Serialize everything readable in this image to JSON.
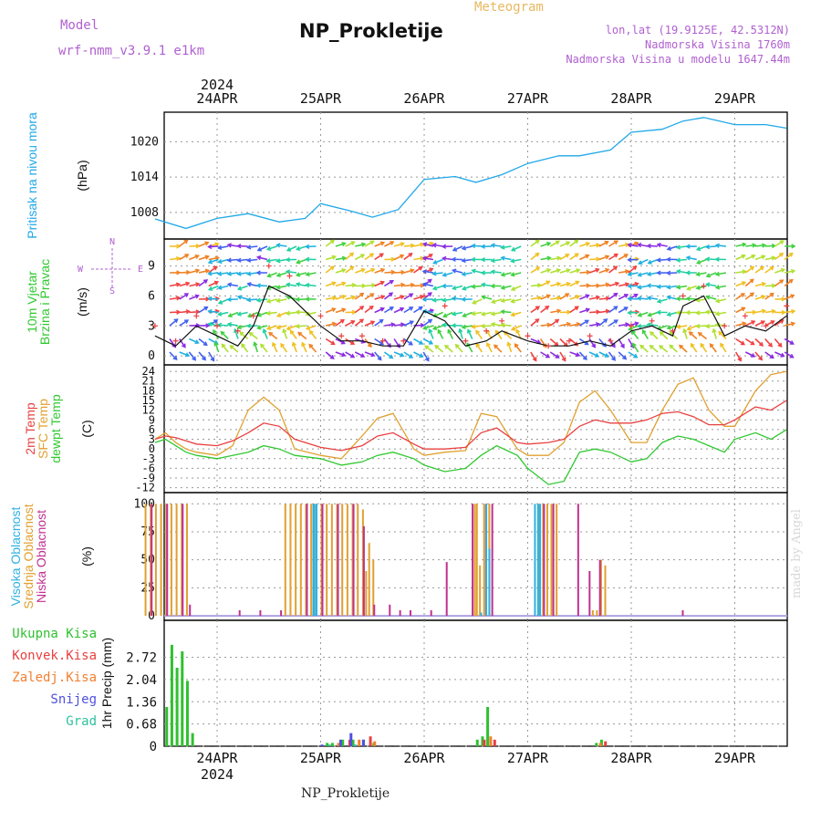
{
  "header": {
    "title": "NP_Prokletije",
    "meteogram": "Meteogram",
    "model_label": "Model",
    "model_name": "wrf-nmm_v3.9.1 e1km",
    "info_lonlat": "lon,lat (19.9125E, 42.5312N)",
    "info_altitude": "Nadmorska Visina 1760m",
    "info_model_altitude": "Nadmorska Visina u modelu 1647.44m"
  },
  "footer": {
    "station": "NP_Prokletije"
  },
  "watermark": "made by Angel",
  "colors": {
    "pressure": "#20a8e8",
    "temp2m": "#e84040",
    "sfc": "#e0a030",
    "dewpt": "#30c830",
    "cloud_high": "#30b0e0",
    "cloud_mid": "#e0a030",
    "cloud_low": "#c03090",
    "precip_total": "#30c030",
    "precip_conv": "#e84040",
    "precip_strat": "#f08030",
    "snow": "#5050e0",
    "graupel": "#30c0a0",
    "wind_speed_line": "#111111"
  },
  "chart_data": [
    {
      "type": "line",
      "panel": "pressure",
      "year": "2024",
      "top_dates": [
        "24APR",
        "25APR",
        "26APR",
        "27APR",
        "28APR",
        "29APR"
      ],
      "ylabel": [
        "Pritisak na nivou mora",
        "(hPa)"
      ],
      "yticks": [
        "1008",
        "1014",
        "1020"
      ],
      "ylim": [
        1003.5,
        1025
      ],
      "x_days": [
        -0.6,
        -0.3,
        0,
        0.3,
        0.6,
        0.85,
        1,
        1.3,
        1.5,
        1.75,
        2,
        2.3,
        2.5,
        2.75,
        3,
        3.3,
        3.5,
        3.8,
        4,
        4.3,
        4.5,
        4.7,
        5,
        5.3,
        5.5
      ],
      "values": [
        1006.9,
        1005.3,
        1007,
        1007.8,
        1006.4,
        1007,
        1009.5,
        1008.2,
        1007.2,
        1008.5,
        1013.6,
        1014.1,
        1013.1,
        1014.4,
        1016.3,
        1017.6,
        1017.6,
        1018.6,
        1021.6,
        1022.1,
        1023.5,
        1024.1,
        1022.9,
        1022.9,
        1022.3
      ]
    },
    {
      "type": "line",
      "panel": "wind",
      "ylabel": [
        "10m Vjetar",
        "Brzina i Pravac",
        "(m/s)"
      ],
      "compass": {
        "n": "N",
        "s": "S",
        "w": "W",
        "e": "E"
      },
      "yticks": [
        "0",
        "3",
        "6",
        "9"
      ],
      "ylim": [
        -0.9,
        11.7
      ],
      "x_days": [
        -0.6,
        -0.4,
        -0.2,
        0,
        0.2,
        0.35,
        0.5,
        0.7,
        1,
        1.2,
        1.4,
        1.6,
        1.8,
        2,
        2.2,
        2.4,
        2.6,
        2.75,
        3,
        3.2,
        3.4,
        3.6,
        3.8,
        4,
        4.2,
        4.4,
        4.5,
        4.7,
        4.9,
        5.1,
        5.3,
        5.5
      ],
      "speed": [
        2,
        1,
        3,
        2,
        1,
        3,
        7,
        6,
        3,
        1.5,
        1.5,
        1,
        1,
        4.5,
        3.5,
        1,
        1.5,
        2.5,
        1.5,
        1,
        1,
        1.5,
        1,
        2.5,
        3,
        2,
        5,
        6,
        2,
        3,
        2.5,
        4
      ],
      "gust": [
        3,
        1.5,
        4,
        3,
        2.5,
        4,
        9,
        8,
        4,
        2,
        2,
        1.5,
        1.5,
        6,
        5,
        1.5,
        2.5,
        3.5,
        2,
        1,
        1.5,
        2,
        1.5,
        3,
        3.5,
        2.5,
        6,
        7,
        3,
        4,
        3,
        5
      ]
    },
    {
      "type": "line",
      "panel": "temperature",
      "ylabel": [
        "2m Temp",
        "SFC Temp",
        "dewpt Temp",
        "(C)"
      ],
      "yticks": [
        "24",
        "21",
        "18",
        "15",
        "12",
        "9",
        "6",
        "3",
        "0",
        "-3",
        "-6",
        "-9",
        "-12"
      ],
      "ylim": [
        -13.5,
        26
      ],
      "x_days": [
        -0.6,
        -0.5,
        -0.4,
        -0.3,
        -0.2,
        0,
        0.15,
        0.3,
        0.45,
        0.6,
        0.75,
        1,
        1.2,
        1.4,
        1.55,
        1.7,
        1.9,
        2,
        2.2,
        2.4,
        2.55,
        2.7,
        2.9,
        3,
        3.2,
        3.35,
        3.5,
        3.65,
        3.8,
        4,
        4.15,
        4.3,
        4.45,
        4.6,
        4.75,
        4.9,
        5,
        5.2,
        5.35,
        5.5
      ],
      "temp2m": [
        3,
        4,
        3.5,
        2.5,
        1.5,
        1,
        2.5,
        5,
        8,
        7,
        3,
        0.5,
        -0.5,
        1,
        4,
        5,
        1.5,
        0,
        0,
        0.5,
        5,
        6.5,
        2,
        1.5,
        2,
        3,
        7,
        9,
        8,
        8,
        9,
        11,
        11.5,
        10,
        7.5,
        7.5,
        9,
        13,
        12,
        15
      ],
      "sfc": [
        3,
        5,
        2,
        0,
        -1,
        -2,
        1,
        12,
        16,
        12,
        0,
        -2,
        -3,
        4,
        9.5,
        11,
        0,
        -2,
        -1,
        -0.5,
        11,
        10,
        0,
        -2,
        -2,
        2,
        14.5,
        18,
        12,
        2,
        2,
        12,
        20,
        22,
        12,
        7,
        7,
        18,
        23,
        24
      ],
      "dewpt": [
        2,
        3,
        1,
        -1,
        -2,
        -3,
        -2,
        -1,
        1,
        0,
        -2,
        -3,
        -5,
        -4,
        -2,
        -1,
        -3,
        -5,
        -7,
        -6,
        -2,
        1,
        -2,
        -6,
        -11,
        -10,
        -1,
        0,
        -1,
        -4,
        -3,
        2,
        4,
        3,
        1,
        -1,
        3,
        5,
        3,
        6
      ]
    },
    {
      "type": "bar",
      "panel": "cloud",
      "ylabel": [
        "Visoka Oblacnost",
        "Srednja Oblacnost",
        "Niska Oblacnost",
        "(%)"
      ],
      "yticks": [
        "0",
        "25",
        "50",
        "75",
        "100"
      ],
      "ylim": [
        -4,
        110
      ],
      "high": [
        [
          0.93,
          100
        ],
        [
          0.94,
          100
        ],
        [
          0.96,
          100
        ],
        [
          2.55,
          3
        ],
        [
          3.07,
          100
        ],
        [
          3.1,
          100
        ],
        [
          3.12,
          100
        ],
        [
          2.63,
          60
        ],
        [
          2.6,
          100
        ]
      ],
      "mid": [
        [
          -0.7,
          100
        ],
        [
          -0.65,
          100
        ],
        [
          -0.6,
          100
        ],
        [
          -0.55,
          100
        ],
        [
          -0.5,
          100
        ],
        [
          -0.45,
          100
        ],
        [
          -0.4,
          100
        ],
        [
          -0.35,
          100
        ],
        [
          -0.3,
          100
        ],
        [
          0.65,
          100
        ],
        [
          0.7,
          100
        ],
        [
          0.75,
          100
        ],
        [
          0.8,
          100
        ],
        [
          0.85,
          100
        ],
        [
          0.9,
          100
        ],
        [
          0.95,
          100
        ],
        [
          1,
          100
        ],
        [
          1.05,
          100
        ],
        [
          1.1,
          100
        ],
        [
          1.15,
          100
        ],
        [
          1.2,
          100
        ],
        [
          1.25,
          100
        ],
        [
          1.3,
          100
        ],
        [
          1.35,
          100
        ],
        [
          1.4,
          95
        ],
        [
          1.43,
          40
        ],
        [
          1.46,
          65
        ],
        [
          1.5,
          50
        ],
        [
          2.48,
          100
        ],
        [
          2.5,
          100
        ],
        [
          2.53,
          45
        ],
        [
          2.57,
          100
        ],
        [
          2.62,
          100
        ],
        [
          3.1,
          100
        ],
        [
          3.14,
          100
        ],
        [
          3.18,
          100
        ],
        [
          3.22,
          100
        ],
        [
          3.27,
          100
        ],
        [
          3.62,
          5
        ],
        [
          3.66,
          5
        ],
        [
          3.7,
          50
        ],
        [
          3.74,
          45
        ]
      ],
      "low": [
        [
          -0.65,
          100
        ],
        [
          -0.5,
          100
        ],
        [
          -0.35,
          100
        ],
        [
          -0.28,
          10
        ],
        [
          0.2,
          5
        ],
        [
          0.4,
          5
        ],
        [
          0.6,
          5
        ],
        [
          0.85,
          100
        ],
        [
          1,
          100
        ],
        [
          1.15,
          100
        ],
        [
          1.3,
          100
        ],
        [
          1.4,
          80
        ],
        [
          1.5,
          10
        ],
        [
          1.65,
          10
        ],
        [
          1.75,
          5
        ],
        [
          1.85,
          5
        ],
        [
          2.05,
          5
        ],
        [
          2.2,
          48
        ],
        [
          2.45,
          100
        ],
        [
          2.58,
          100
        ],
        [
          2.64,
          100
        ],
        [
          3.14,
          100
        ],
        [
          3.23,
          100
        ],
        [
          3.47,
          100
        ],
        [
          3.58,
          40
        ],
        [
          3.68,
          50
        ],
        [
          4.48,
          5
        ]
      ]
    },
    {
      "type": "bar",
      "panel": "precip",
      "legend": [
        "Ukupna Kisa",
        "Konvek.Kisa",
        "Zaledj.Kisa",
        "Snijeg",
        "Grad"
      ],
      "ylabel": [
        "1hr Precip (mm)"
      ],
      "bottom_dates": [
        "24APR",
        "25APR",
        "26APR",
        "27APR",
        "28APR",
        "29APR"
      ],
      "year": "2024",
      "yticks": [
        "0",
        "0.68",
        "1.36",
        "2.04",
        "2.72"
      ],
      "ylim": [
        0,
        3.85
      ],
      "total": [
        [
          -0.5,
          1.2
        ],
        [
          -0.45,
          3.1
        ],
        [
          -0.4,
          2.4
        ],
        [
          -0.35,
          2.9
        ],
        [
          -0.3,
          2.0
        ],
        [
          -0.25,
          0.4
        ],
        [
          1.05,
          0.1
        ],
        [
          1.1,
          0.1
        ],
        [
          1.2,
          0.2
        ],
        [
          1.3,
          0.2
        ],
        [
          1.4,
          0.2
        ],
        [
          1.5,
          0.1
        ],
        [
          2.6,
          1.2
        ],
        [
          2.55,
          0.3
        ],
        [
          2.5,
          0.2
        ],
        [
          3.7,
          0.2
        ],
        [
          3.65,
          0.1
        ]
      ],
      "convective": [
        [
          1.25,
          0.2
        ],
        [
          1.45,
          0.3
        ],
        [
          2.55,
          0.2
        ],
        [
          2.65,
          0.2
        ],
        [
          3.72,
          0.15
        ]
      ],
      "frozen": [
        [
          1.15,
          0.1
        ],
        [
          1.35,
          0.2
        ],
        [
          1.5,
          0.15
        ],
        [
          2.62,
          0.3
        ],
        [
          3.68,
          0.1
        ]
      ],
      "snow": [
        [
          1.0,
          0.05
        ],
        [
          1.18,
          0.2
        ],
        [
          1.28,
          0.4
        ],
        [
          1.4,
          0.2
        ]
      ],
      "graupel": [
        [
          1.08,
          0.05
        ],
        [
          1.33,
          0.05
        ]
      ]
    }
  ]
}
